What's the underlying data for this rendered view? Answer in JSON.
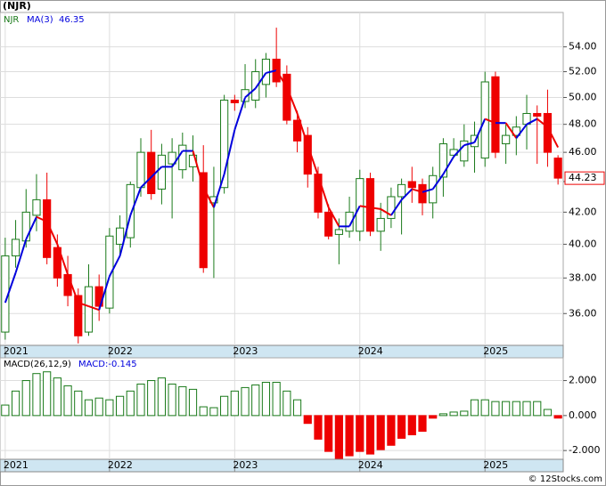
{
  "chart_data": [
    {
      "type": "candlestick",
      "title": "(NJR)",
      "name": "NJR",
      "log_scale": true,
      "grid": true,
      "categories": [
        "2021",
        null,
        null,
        null,
        null,
        null,
        null,
        null,
        null,
        null,
        "2022",
        null,
        null,
        null,
        null,
        null,
        null,
        null,
        null,
        null,
        null,
        null,
        "2023",
        null,
        null,
        null,
        null,
        null,
        null,
        null,
        null,
        null,
        null,
        null,
        "2024",
        null,
        null,
        null,
        null,
        null,
        null,
        null,
        null,
        null,
        null,
        null,
        "2025",
        null,
        null,
        null,
        null,
        null,
        null,
        null
      ],
      "open": [
        35.0,
        39.3,
        40.2,
        41.8,
        42.8,
        39.8,
        38.2,
        37.0,
        35.0,
        37.5,
        36.3,
        40.0,
        40.4,
        43.6,
        46.0,
        43.5,
        45.2,
        44.8,
        45.0,
        44.6,
        42.6,
        43.6,
        49.8,
        49.7,
        49.8,
        51.0,
        53.0,
        51.8,
        48.3,
        47.2,
        44.5,
        42.0,
        40.6,
        40.8,
        40.8,
        44.2,
        40.8,
        41.6,
        43.0,
        44.0,
        43.8,
        42.6,
        44.3,
        45.8,
        45.4,
        46.4,
        45.6,
        51.6,
        46.6,
        47.2,
        48.0,
        48.8,
        48.8,
        45.6
      ],
      "high": [
        40.4,
        41.5,
        43.5,
        44.5,
        44.6,
        40.6,
        39.3,
        37.4,
        38.8,
        38.2,
        41.0,
        41.8,
        44.0,
        47.0,
        47.6,
        46.6,
        47.0,
        47.4,
        47.2,
        46.5,
        45.0,
        50.2,
        50.2,
        52.6,
        53.0,
        53.5,
        55.6,
        52.5,
        49.0,
        47.8,
        45.0,
        42.5,
        41.6,
        43.0,
        44.8,
        44.6,
        42.6,
        43.6,
        44.2,
        45.0,
        44.2,
        45.0,
        47.0,
        47.0,
        48.0,
        48.2,
        52.0,
        52.0,
        48.0,
        48.6,
        50.2,
        49.4,
        50.6,
        45.8
      ],
      "low": [
        34.6,
        38.6,
        39.8,
        40.8,
        38.8,
        37.5,
        36.4,
        34.4,
        34.8,
        35.6,
        36.0,
        39.4,
        39.8,
        43.0,
        42.8,
        42.5,
        41.6,
        44.2,
        44.0,
        38.3,
        38.0,
        43.2,
        49.0,
        49.2,
        49.2,
        50.0,
        50.8,
        48.0,
        46.0,
        43.6,
        41.6,
        40.3,
        38.8,
        40.4,
        40.2,
        40.5,
        39.6,
        41.0,
        40.6,
        42.6,
        41.8,
        41.6,
        43.0,
        45.6,
        45.0,
        44.6,
        45.0,
        45.6,
        45.2,
        45.8,
        46.2,
        45.2,
        45.0,
        43.8
      ],
      "close": [
        39.3,
        40.3,
        42.0,
        42.8,
        39.2,
        38.0,
        37.0,
        34.8,
        37.5,
        36.4,
        40.5,
        41.0,
        43.8,
        46.0,
        43.2,
        45.8,
        46.0,
        46.5,
        45.8,
        38.6,
        43.0,
        49.8,
        49.6,
        50.6,
        52.0,
        53.0,
        51.2,
        48.3,
        46.8,
        44.5,
        42.0,
        40.5,
        40.9,
        42.0,
        44.2,
        40.8,
        41.6,
        43.0,
        43.8,
        43.6,
        42.6,
        44.4,
        46.6,
        46.2,
        46.8,
        47.2,
        51.2,
        46.0,
        47.2,
        47.8,
        48.8,
        48.6,
        46.0,
        44.23
      ],
      "up_color": "#1a7a1a",
      "down_color": "#ee0000",
      "ma": {
        "name": "MA(3)",
        "up_color": "#0000dd",
        "down_color": "#ee0000",
        "values": [
          36.6,
          38.3,
          40.3,
          41.7,
          41.4,
          40.0,
          38.2,
          36.6,
          36.4,
          36.2,
          38.1,
          39.3,
          41.8,
          43.6,
          44.3,
          45.0,
          45.0,
          46.1,
          46.1,
          43.6,
          42.3,
          44.5,
          47.6,
          50.0,
          50.7,
          51.9,
          52.1,
          50.8,
          48.8,
          46.5,
          44.4,
          42.3,
          41.1,
          41.1,
          42.4,
          42.3,
          42.2,
          41.8,
          42.8,
          43.5,
          43.3,
          43.5,
          44.5,
          45.7,
          46.5,
          46.7,
          48.4,
          48.1,
          48.1,
          47.0,
          48.0,
          48.4,
          47.8,
          46.35
        ]
      },
      "ylim": [
        34.3,
        56.9
      ],
      "yticks": [
        {
          "value": 36,
          "label": "36.00"
        },
        {
          "value": 38,
          "label": "38.00"
        },
        {
          "value": 40,
          "label": "40.00"
        },
        {
          "value": 42,
          "label": "42.00"
        },
        {
          "value": 44,
          "label": "44.00"
        },
        {
          "value": 46,
          "label": "46.00"
        },
        {
          "value": 48,
          "label": "48.00"
        },
        {
          "value": 50,
          "label": "50.00"
        },
        {
          "value": 52,
          "label": "52.00"
        },
        {
          "value": 54,
          "label": "54.00"
        }
      ]
    },
    {
      "type": "bar",
      "title": "MACD(26,12,9)",
      "annotation": "MACD:-0.145",
      "grid": true,
      "values": [
        0.6,
        1.4,
        2.0,
        2.4,
        2.5,
        2.15,
        1.7,
        1.4,
        0.9,
        1.0,
        0.9,
        1.1,
        1.4,
        1.8,
        2.0,
        2.15,
        1.8,
        1.65,
        1.5,
        0.5,
        0.45,
        1.1,
        1.4,
        1.6,
        1.75,
        1.9,
        1.9,
        1.4,
        0.9,
        -0.45,
        -1.35,
        -2.05,
        -2.45,
        -2.3,
        -2.05,
        -2.2,
        -1.95,
        -1.7,
        -1.3,
        -1.1,
        -0.9,
        -0.15,
        0.1,
        0.2,
        0.25,
        0.9,
        0.9,
        0.8,
        0.8,
        0.8,
        0.8,
        0.8,
        0.35,
        -0.145
      ],
      "up_color": "#1a7a1a",
      "down_color": "#ee0000",
      "ylim": [
        -2.5,
        3.3
      ],
      "yticks": [
        {
          "value": -2,
          "label": "-2.000"
        },
        {
          "value": 0,
          "label": "0.000"
        },
        {
          "value": 2,
          "label": "2.000"
        }
      ]
    }
  ],
  "footer": "© 12Stocks.com"
}
